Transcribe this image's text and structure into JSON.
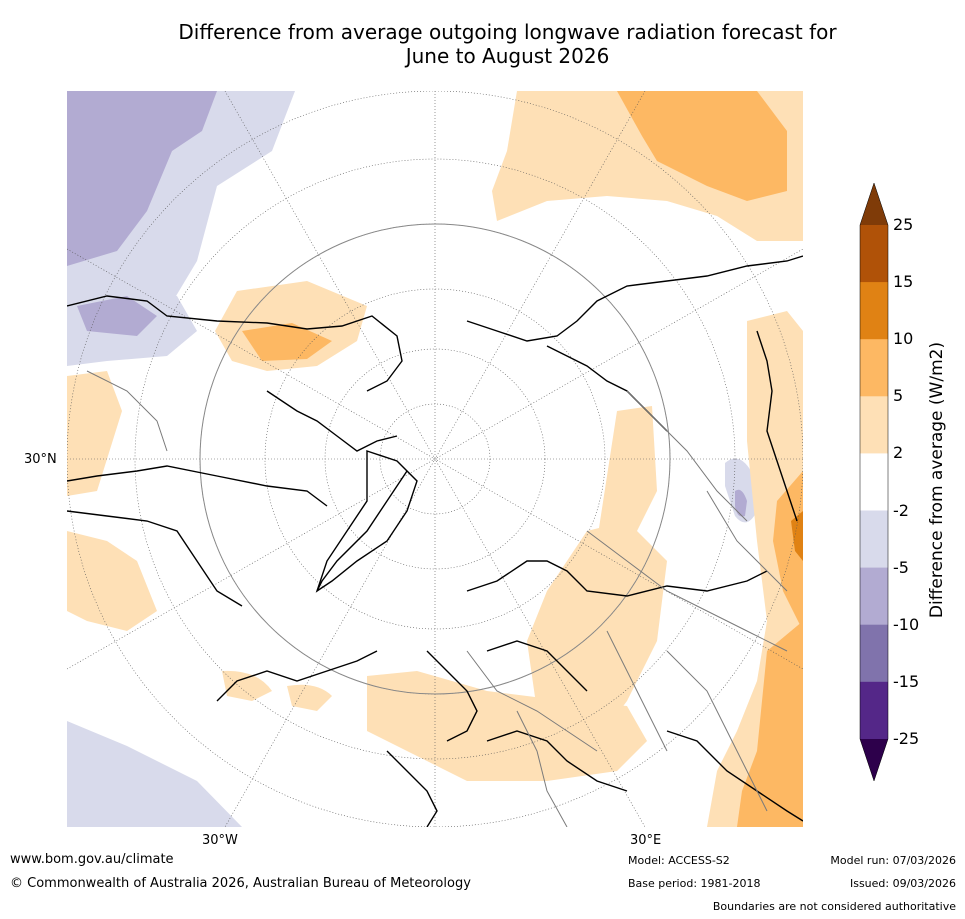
{
  "title": {
    "line1": "Difference from average outgoing longwave radiation forecast for",
    "line2": "June to August 2026"
  },
  "axis_labels": {
    "lat_30n": "30°N",
    "lon_30w": "30°W",
    "lon_30e": "30°E"
  },
  "colorbar": {
    "title": "Difference from average (W/m2)",
    "ticks": [
      "25",
      "15",
      "10",
      "5",
      "2",
      "-2",
      "-5",
      "-10",
      "-15",
      "-25"
    ],
    "colors": [
      "#b05208",
      "#e08214",
      "#fdb863",
      "#fee0b6",
      "#ffffff",
      "#d8daeb",
      "#b2abd2",
      "#8073ac",
      "#542788"
    ],
    "over_color": "#7f3b08",
    "under_color": "#2d004b"
  },
  "footer": {
    "website": "www.bom.gov.au/climate",
    "copyright": "© Commonwealth of Australia 2026, Australian Bureau of Meteorology",
    "model": "Model: ACCESS-S2",
    "base_period": "Base period: 1981-2018",
    "model_run": "Model run: 07/03/2026",
    "issued": "Issued: 09/03/2026",
    "disclaimer": "Boundaries are not considered authoritative"
  }
}
